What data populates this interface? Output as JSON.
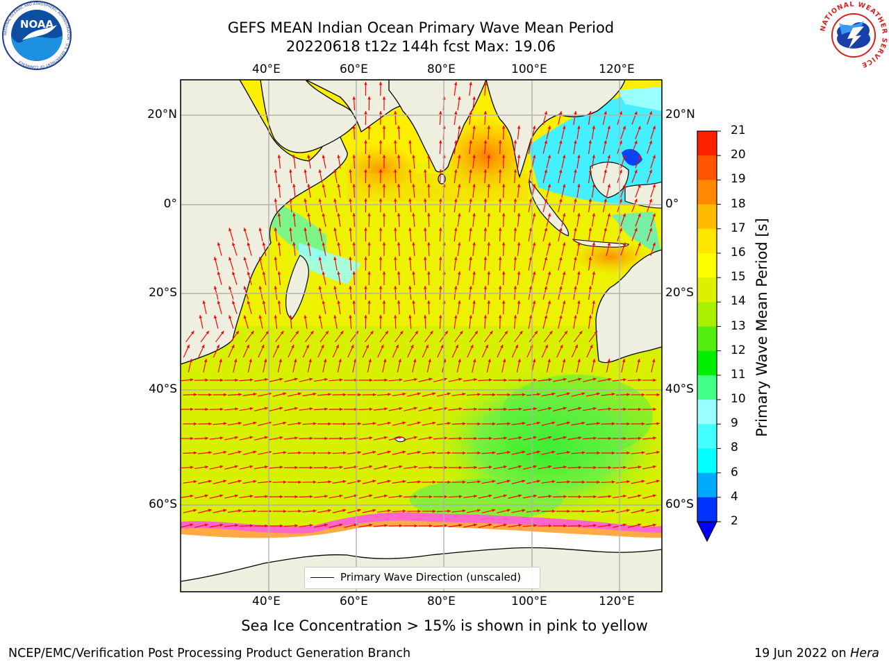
{
  "header": {
    "title_line1": "GEFS MEAN Indian Ocean Primary Wave Mean Period",
    "title_line2": "20220618 t12z 144h fcst   Max: 19.06"
  },
  "logos": {
    "noaa_text": "NOAA",
    "noaa_ring": "NATIONAL OCEANIC AND ATMOSPHERIC ADMINISTRATION · U.S. DEPARTMENT OF COMMERCE",
    "nws_ring": "NATIONAL WEATHER SERVICE"
  },
  "map": {
    "lon_ticks": [
      "40°E",
      "60°E",
      "80°E",
      "100°E",
      "120°E"
    ],
    "lat_ticks": [
      "20°N",
      "0°",
      "20°S",
      "40°S",
      "60°S"
    ],
    "legend_label": "Primary Wave Direction (unscaled)",
    "land_color": "#efefdf",
    "ice_color": "#ffffff",
    "arrow_color": "#ff0000"
  },
  "colorbar": {
    "label": "Primary Wave Mean Period [s]",
    "ticks": [
      "2",
      "4",
      "6",
      "8",
      "9",
      "10",
      "11",
      "12",
      "13",
      "14",
      "15",
      "16",
      "17",
      "18",
      "19",
      "20",
      "21"
    ],
    "colors": [
      "#0033ff",
      "#00aaff",
      "#00ffff",
      "#44ffff",
      "#99ffff",
      "#44ff88",
      "#00ee00",
      "#55ee11",
      "#aaee00",
      "#ddf000",
      "#ffff00",
      "#ffe600",
      "#ffbb00",
      "#ff8800",
      "#ff5500",
      "#ff2200"
    ],
    "extend_min_color": "#0000ff"
  },
  "note": "Sea Ice Concentration > 15% is shown in pink to yellow",
  "footer": {
    "left": "NCEP/EMC/Verification Post Processing Product Generation Branch",
    "date": "19 Jun 2022 on ",
    "machine": "Hera"
  }
}
